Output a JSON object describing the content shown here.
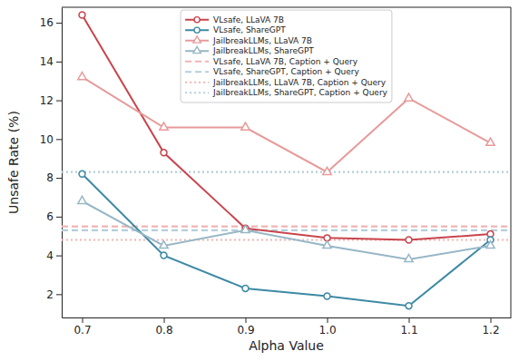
{
  "chart_data": {
    "type": "line",
    "x_label": "Alpha Value",
    "y_label": "Unsafe Rate (%)",
    "x": [
      0.7,
      0.8,
      0.9,
      1.0,
      1.1,
      1.2
    ],
    "xlim": [
      0.675,
      1.225
    ],
    "xticks": [
      0.7,
      0.8,
      0.9,
      {
        "value": 1.0,
        "label": "1.0"
      },
      1.1,
      1.2
    ],
    "ylim": [
      0.8,
      16.8
    ],
    "yticks": [
      2,
      4,
      6,
      8,
      10,
      12,
      14,
      16
    ],
    "grid": false,
    "legend": "upper center",
    "series": [
      {
        "name": "VLsafe, LLaVA 7B",
        "color": "#c8454d",
        "marker": "circle",
        "line_style": "solid",
        "values": [
          16.4,
          9.3,
          5.4,
          4.9,
          4.8,
          5.1
        ]
      },
      {
        "name": "VLsafe, ShareGPT",
        "color": "#3d8aa5",
        "marker": "circle",
        "line_style": "solid",
        "values": [
          8.2,
          4.0,
          2.3,
          1.9,
          1.4,
          4.8
        ]
      },
      {
        "name": "JailbreakLLMs, LLaVA 7B",
        "color": "#e89a9a",
        "marker": "triangle",
        "line_style": "solid",
        "values": [
          13.2,
          10.6,
          10.6,
          8.3,
          12.1,
          9.8
        ]
      },
      {
        "name": "JailbreakLLMs, ShareGPT",
        "color": "#97b7c6",
        "marker": "triangle",
        "line_style": "solid",
        "values": [
          6.8,
          4.5,
          5.3,
          4.5,
          3.8,
          4.5
        ]
      },
      {
        "name": "VLsafe, LLaVA 7B, Caption + Query",
        "type": "hline",
        "color": "#f2b3b3",
        "line_style": "dashed",
        "value": 5.5
      },
      {
        "name": "VLsafe, ShareGPT, Caption + Query",
        "type": "hline",
        "color": "#b3ceda",
        "line_style": "dashed",
        "value": 5.3
      },
      {
        "name": "JailbreakLLMs, LLaVA 7B, Caption + Query",
        "type": "hline",
        "color": "#f2b3b3",
        "line_style": "dotted",
        "value": 4.8
      },
      {
        "name": "JailbreakLLMs, ShareGPT, Caption + Query",
        "type": "hline",
        "color": "#b3ceda",
        "line_style": "dotted",
        "value": 8.3
      }
    ]
  }
}
